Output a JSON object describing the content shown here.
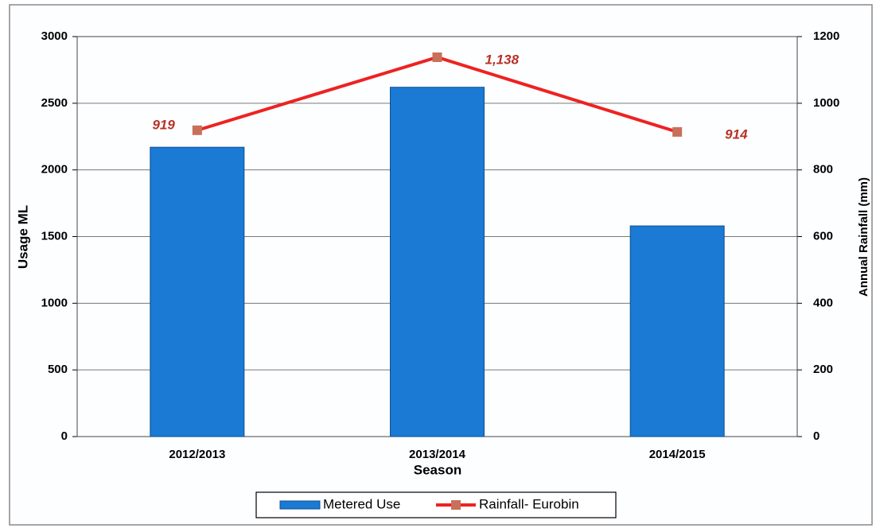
{
  "chart_data": {
    "type": "bar",
    "categories": [
      "2012/2013",
      "2013/2014",
      "2014/2015"
    ],
    "xlabel": "Season",
    "ylabel": "Usage ML",
    "y2label": "Annual Rainfall  (mm)",
    "ylim": [
      0,
      3000
    ],
    "yticks": [
      0,
      500,
      1000,
      1500,
      2000,
      2500,
      3000
    ],
    "y2lim": [
      0,
      1200
    ],
    "y2ticks": [
      0,
      200,
      400,
      600,
      800,
      1000,
      1200
    ],
    "grid": true,
    "legend": "bottom",
    "series": [
      {
        "name": "Metered Use",
        "type": "bar",
        "color": "#1a7ad4",
        "values": [
          2170,
          2620,
          1580
        ]
      },
      {
        "name": "Rainfall- Eurobin",
        "type": "line",
        "axis": "y2",
        "color": "#ee2222",
        "marker_color": "#c8705a",
        "values": [
          919,
          1138,
          914
        ],
        "value_labels": [
          "919",
          "1,138",
          "914"
        ]
      }
    ]
  }
}
